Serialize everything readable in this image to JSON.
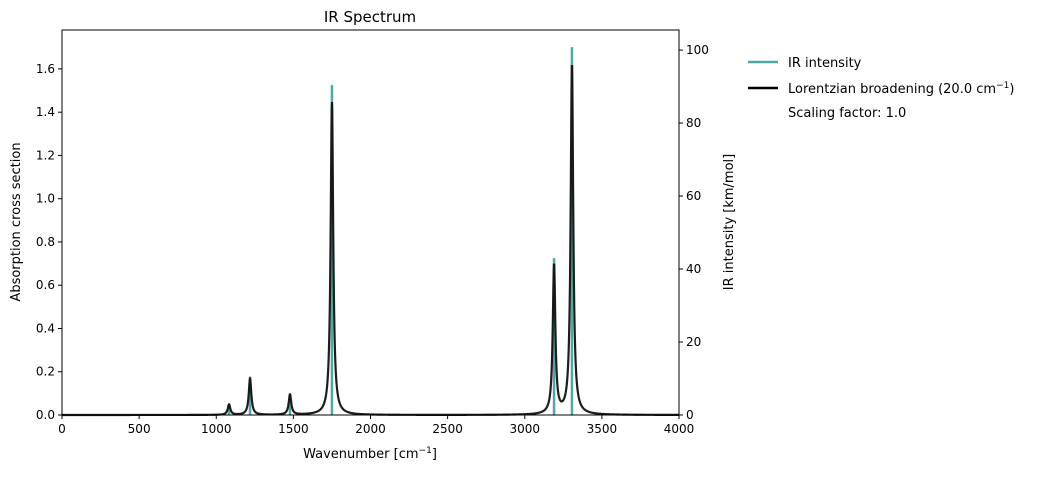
{
  "chart_data": {
    "type": "line",
    "title": "IR Spectrum",
    "xlabel": "Wavenumber [cm",
    "xlabel_sup": "−1",
    "xlabel_end": "]",
    "ylabel": "Absorption cross section",
    "y2label": "IR intensity [km/mol]",
    "xlim": [
      0,
      4000
    ],
    "ylim": [
      0,
      1.78
    ],
    "y2lim": [
      0,
      105.5
    ],
    "xticks": [
      0,
      500,
      1000,
      1500,
      2000,
      2500,
      3000,
      3500,
      4000
    ],
    "yticks": [
      0.0,
      0.2,
      0.4,
      0.6,
      0.8,
      1.0,
      1.2,
      1.4,
      1.6
    ],
    "y2ticks": [
      0,
      20,
      40,
      60,
      80,
      100
    ],
    "grid": false,
    "legend_placement": "outside-right",
    "sticks": {
      "name": "IR intensity",
      "color": "#4fa8a5",
      "x": [
        1083,
        1219,
        1478,
        1750,
        3190,
        3306
      ],
      "y": [
        3.0,
        10.4,
        5.8,
        90.4,
        43.0,
        100.8
      ]
    },
    "broadened": {
      "name": "Lorentzian broadening (20.0 cm",
      "name_sup": "−1",
      "name_end": ")",
      "color": "#111111",
      "fwhm": 20.0
    },
    "scaling_label": "Scaling factor: 1.0"
  }
}
